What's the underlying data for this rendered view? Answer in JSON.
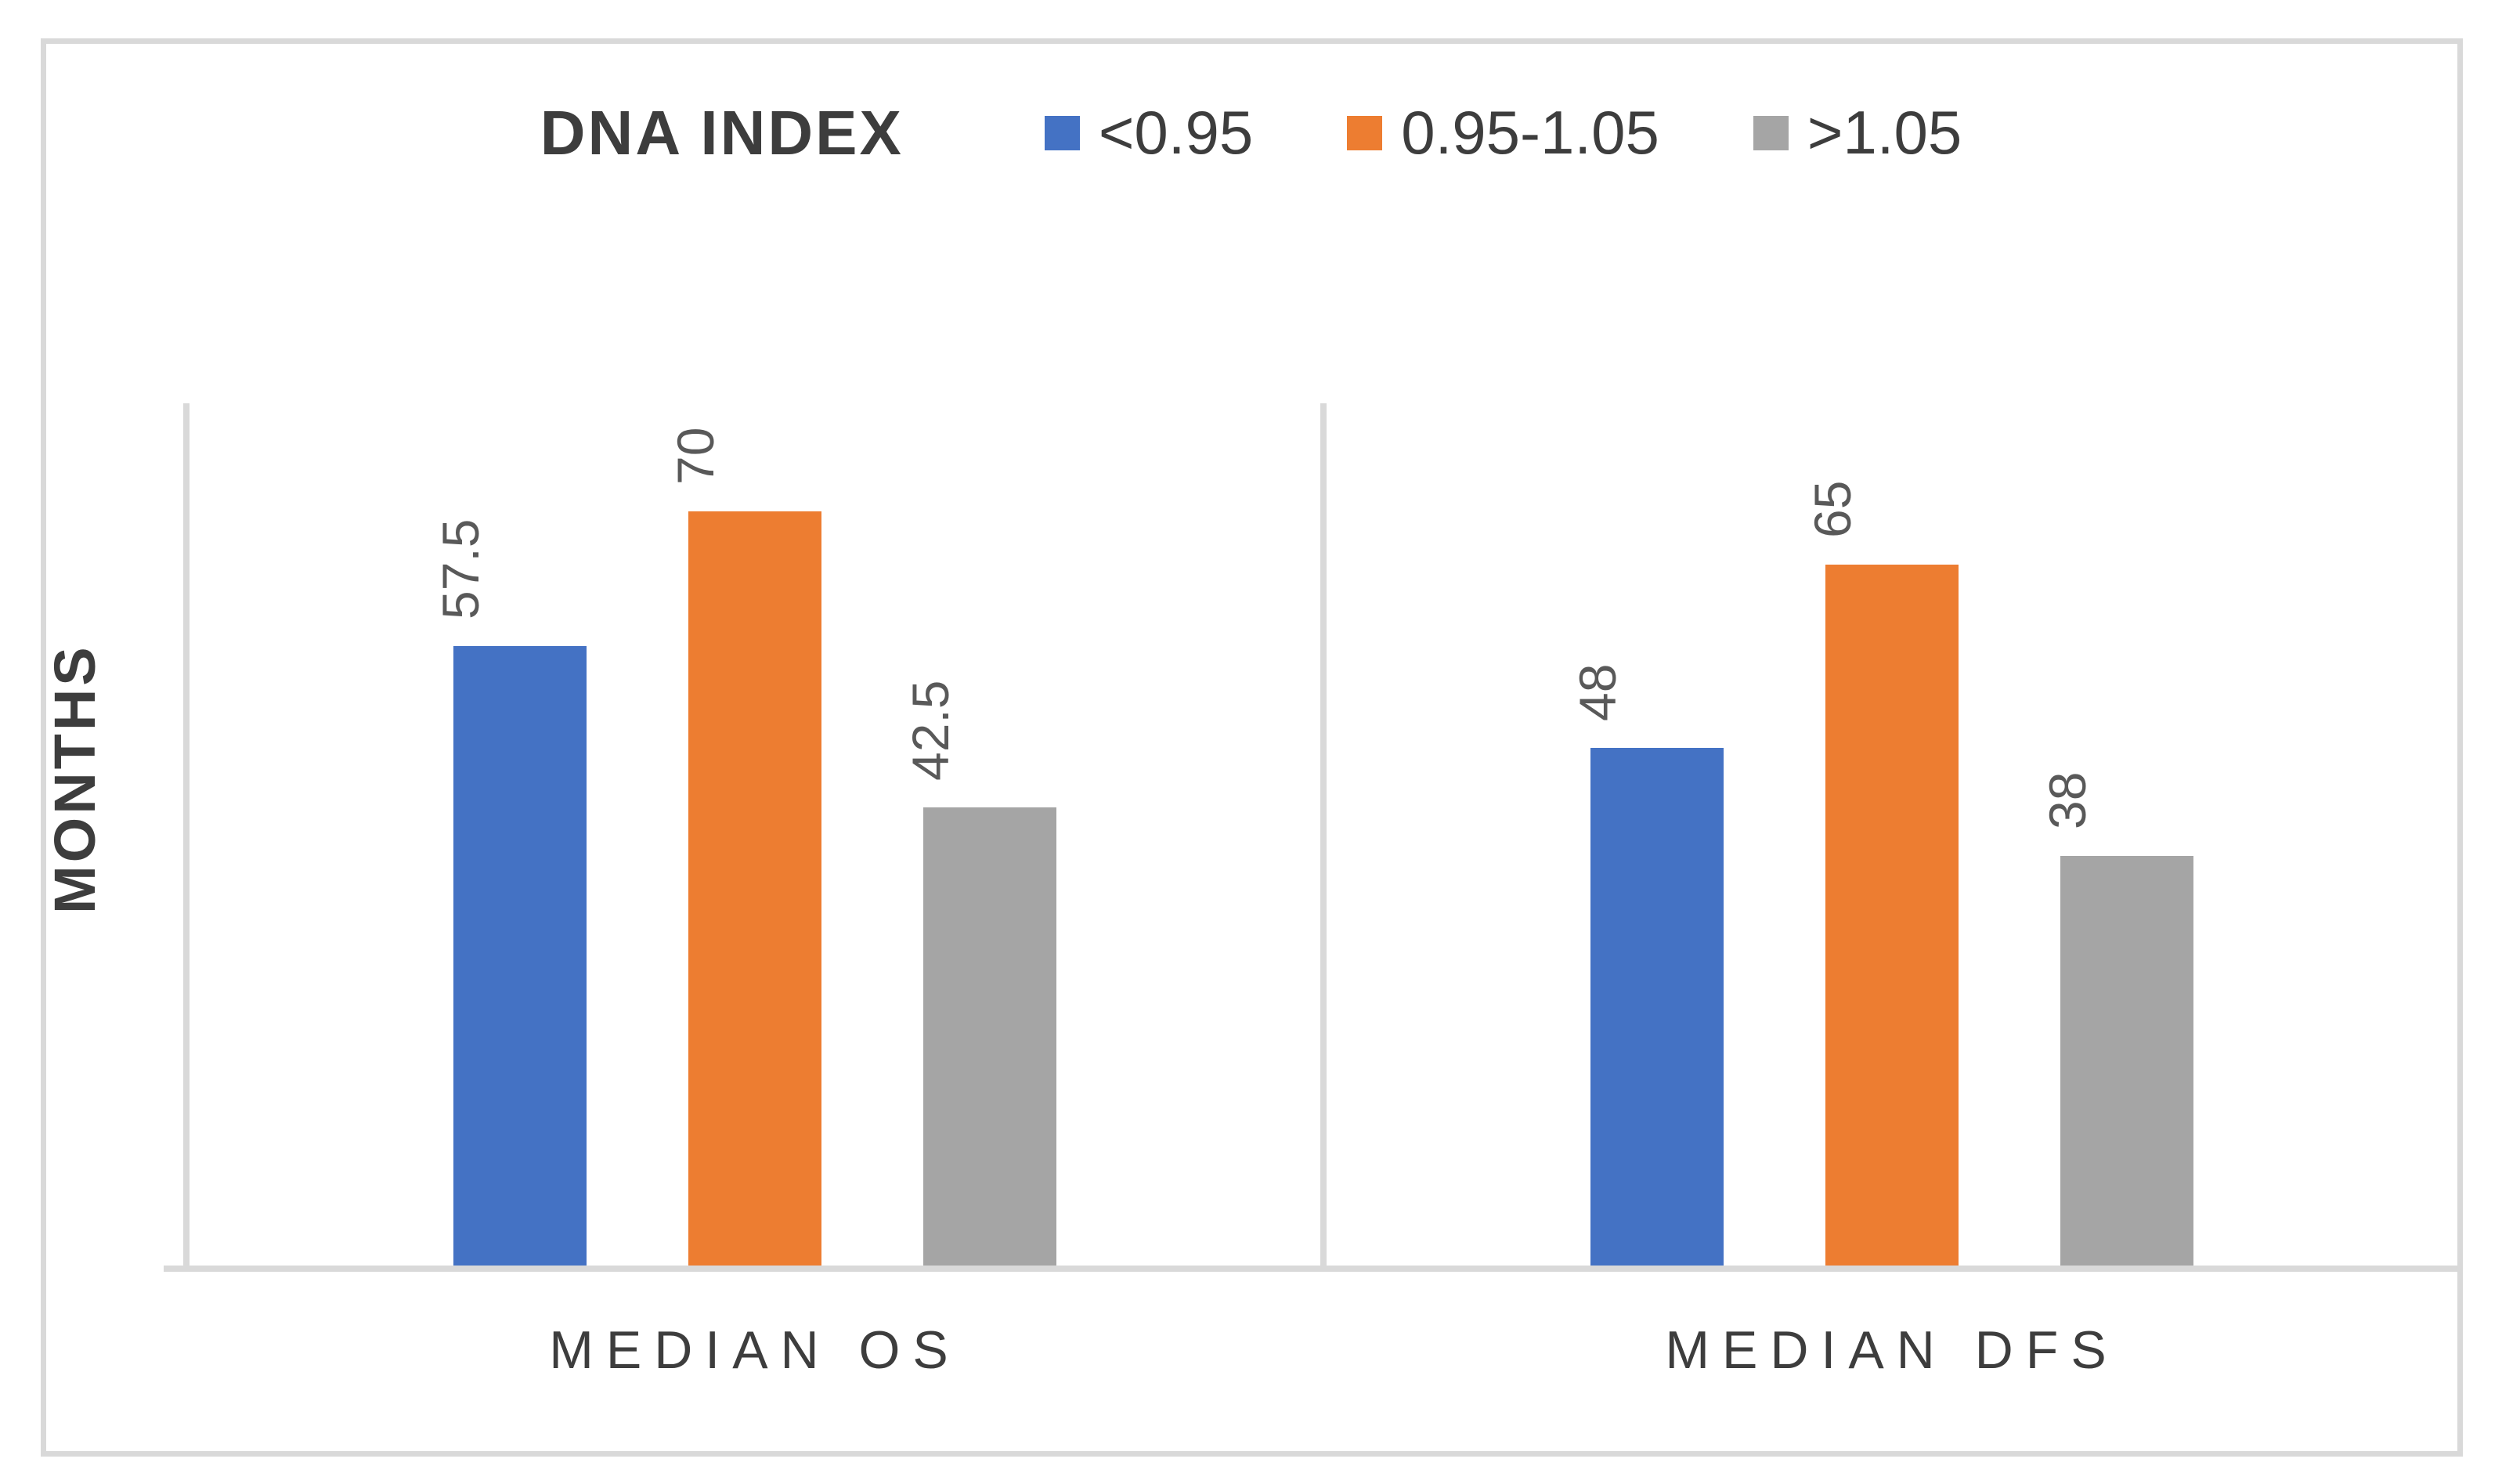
{
  "chart_data": {
    "type": "bar",
    "title": "DNA INDEX",
    "ylabel": "MONTHS",
    "xlabel": "",
    "categories": [
      "MEDIAN OS",
      "MEDIAN DFS"
    ],
    "series": [
      {
        "name": "<0.95",
        "color": "#4472C4",
        "values": [
          57.5,
          48
        ]
      },
      {
        "name": "0.95-1.05",
        "color": "#ED7D31",
        "values": [
          70,
          65
        ]
      },
      {
        "name": ">1.05",
        "color": "#A5A5A5",
        "values": [
          42.5,
          38
        ]
      }
    ],
    "ylim": [
      0,
      80
    ],
    "grid": false,
    "legend_position": "top",
    "data_labels_shown": true,
    "colors": {
      "axis_line": "#D9D9D9",
      "border": "#D9D9D9",
      "data_label_text": "#595959",
      "text": "#3D3D3D"
    }
  }
}
